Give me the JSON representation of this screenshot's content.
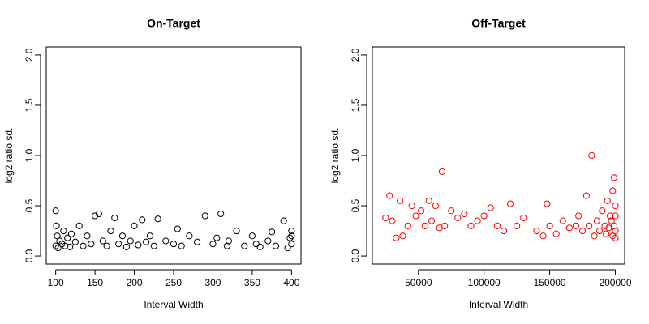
{
  "chart_data": [
    {
      "type": "scatter",
      "title": "On-Target",
      "xlabel": "Interval Width",
      "ylabel": "log2 ratio sd.",
      "color": "#000000",
      "x": [
        100,
        100,
        101,
        102,
        103,
        105,
        108,
        110,
        112,
        115,
        118,
        120,
        125,
        130,
        135,
        140,
        145,
        150,
        155,
        160,
        165,
        170,
        175,
        180,
        185,
        190,
        195,
        200,
        205,
        210,
        215,
        220,
        225,
        230,
        240,
        250,
        255,
        260,
        270,
        280,
        290,
        300,
        305,
        310,
        318,
        320,
        330,
        340,
        350,
        355,
        360,
        370,
        375,
        380,
        390,
        395,
        398,
        400,
        400,
        400
      ],
      "values": [
        0.45,
        0.1,
        0.3,
        0.2,
        0.08,
        0.15,
        0.12,
        0.25,
        0.1,
        0.18,
        0.09,
        0.22,
        0.14,
        0.3,
        0.1,
        0.2,
        0.12,
        0.4,
        0.42,
        0.15,
        0.1,
        0.25,
        0.38,
        0.12,
        0.2,
        0.09,
        0.15,
        0.3,
        0.11,
        0.36,
        0.14,
        0.2,
        0.1,
        0.37,
        0.15,
        0.12,
        0.27,
        0.1,
        0.2,
        0.14,
        0.4,
        0.12,
        0.18,
        0.42,
        0.1,
        0.15,
        0.25,
        0.1,
        0.2,
        0.12,
        0.09,
        0.15,
        0.24,
        0.1,
        0.35,
        0.08,
        0.18,
        0.25,
        0.12,
        0.2
      ],
      "xlim": [
        88,
        412
      ],
      "ylim": [
        -0.08,
        2.08
      ],
      "xticks": [
        100,
        150,
        200,
        250,
        300,
        350,
        400
      ],
      "yticks": [
        {
          "value": 0,
          "label": "0.0"
        },
        0.5,
        {
          "value": 1,
          "label": "1.0"
        },
        1.5,
        {
          "value": 2,
          "label": "2.0"
        }
      ]
    },
    {
      "type": "scatter",
      "title": "Off-Target",
      "xlabel": "Interval Width",
      "ylabel": "log2 ratio sd.",
      "color": "#ff0000",
      "x": [
        25000,
        28000,
        30000,
        33000,
        36000,
        38000,
        42000,
        45000,
        48000,
        52000,
        55000,
        58000,
        60000,
        63000,
        66000,
        68000,
        70000,
        75000,
        80000,
        85000,
        90000,
        95000,
        100000,
        105000,
        110000,
        115000,
        120000,
        125000,
        130000,
        140000,
        145000,
        148000,
        150000,
        155000,
        160000,
        165000,
        170000,
        172000,
        175000,
        178000,
        180000,
        182000,
        184000,
        186000,
        188000,
        190000,
        192000,
        193000,
        194000,
        195000,
        196000,
        197000,
        198000,
        198000,
        199000,
        199000,
        200000,
        200000,
        200000,
        200000
      ],
      "values": [
        0.38,
        0.6,
        0.35,
        0.18,
        0.55,
        0.2,
        0.3,
        0.5,
        0.4,
        0.45,
        0.3,
        0.55,
        0.35,
        0.5,
        0.28,
        0.84,
        0.3,
        0.45,
        0.38,
        0.42,
        0.3,
        0.35,
        0.4,
        0.48,
        0.3,
        0.25,
        0.52,
        0.3,
        0.38,
        0.25,
        0.2,
        0.52,
        0.3,
        0.22,
        0.35,
        0.28,
        0.3,
        0.4,
        0.25,
        0.6,
        0.3,
        1.0,
        0.2,
        0.35,
        0.25,
        0.45,
        0.3,
        0.22,
        0.55,
        0.28,
        0.4,
        0.35,
        0.2,
        0.65,
        0.3,
        0.78,
        0.25,
        0.5,
        0.4,
        0.18
      ],
      "xlim": [
        14880,
        207120
      ],
      "ylim": [
        -0.08,
        2.08
      ],
      "xticks": [
        50000,
        100000,
        150000,
        200000
      ],
      "yticks": [
        {
          "value": 0,
          "label": "0.0"
        },
        0.5,
        {
          "value": 1,
          "label": "1.0"
        },
        1.5,
        {
          "value": 2,
          "label": "2.0"
        }
      ]
    }
  ]
}
